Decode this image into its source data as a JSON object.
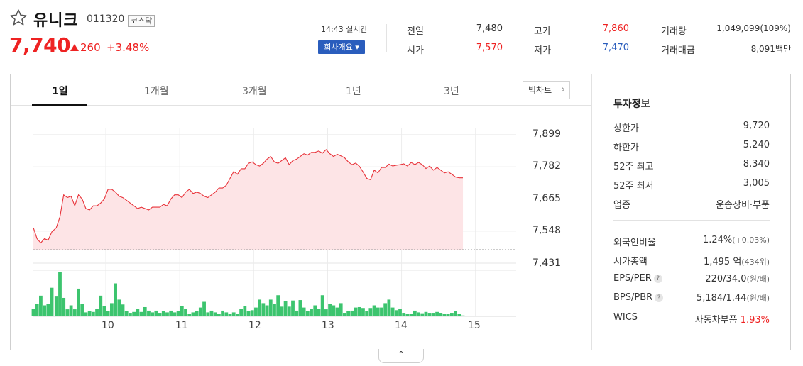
{
  "stock": {
    "name": "유니크",
    "code": "011320",
    "market": "코스닥",
    "price": "7,740",
    "change": "260",
    "rate": "+3.48%",
    "realtime": "14:43 실시간",
    "company_button": "회사개요 ▾"
  },
  "quote": {
    "prev_label": "전일",
    "prev_value": "7,480",
    "open_label": "시가",
    "open_value": "7,570",
    "high_label": "고가",
    "high_value": "7,860",
    "low_label": "저가",
    "low_value": "7,470",
    "volume_label": "거래량",
    "volume_value": "1,049,099(109%)",
    "amount_label": "거래대금",
    "amount_value": "8,091백만"
  },
  "tabs": [
    "1일",
    "1개월",
    "3개월",
    "1년",
    "3년"
  ],
  "bigchart_label": "빅차트",
  "colors": {
    "up": "#e22222",
    "down": "#2a5dbd",
    "volume": "#3cc46e",
    "line": "#e8333a",
    "fill": "#fde4e6"
  },
  "chart_data": {
    "type": "line",
    "y_ticks": [
      "7,899",
      "7,782",
      "7,665",
      "7,548",
      "7,431"
    ],
    "ylim": [
      7431,
      7899
    ],
    "x_ticks": [
      "10",
      "11",
      "12",
      "13",
      "14",
      "15"
    ],
    "xlim": [
      9.02,
      15.55
    ],
    "previous_close": 7480,
    "series": [
      {
        "x": [
          9.02,
          9.07,
          9.12,
          9.17,
          9.22,
          9.27,
          9.33,
          9.38,
          9.43,
          9.48,
          9.53,
          9.58,
          9.63,
          9.68,
          9.73,
          9.78,
          9.83,
          9.88,
          9.93,
          9.98,
          10.03,
          10.08,
          10.13,
          10.18,
          10.23,
          10.28,
          10.33,
          10.38,
          10.43,
          10.48,
          10.53,
          10.58,
          10.63,
          10.68,
          10.73,
          10.78,
          10.83,
          10.88,
          10.93,
          10.98,
          11.03,
          11.08,
          11.13,
          11.18,
          11.23,
          11.28,
          11.33,
          11.38,
          11.43,
          11.48,
          11.53,
          11.58,
          11.63,
          11.68,
          11.73,
          11.78,
          11.83,
          11.88,
          11.93,
          11.98,
          12.03,
          12.08,
          12.13,
          12.18,
          12.23,
          12.28,
          12.33,
          12.38,
          12.43,
          12.48,
          12.53,
          12.58,
          12.63,
          12.68,
          12.73,
          12.78,
          12.83,
          12.88,
          12.93,
          12.98,
          13.03,
          13.08,
          13.13,
          13.18,
          13.23,
          13.28,
          13.33,
          13.38,
          13.43,
          13.48,
          13.53,
          13.58,
          13.63,
          13.68,
          13.73,
          13.78,
          13.83,
          13.88,
          13.93,
          13.98,
          14.03,
          14.08,
          14.13,
          14.18,
          14.23,
          14.28,
          14.33,
          14.38,
          14.43,
          14.48,
          14.53,
          14.58,
          14.63,
          14.68,
          14.73,
          14.78,
          14.83
        ],
        "values": [
          7560,
          7520,
          7505,
          7520,
          7515,
          7545,
          7560,
          7600,
          7680,
          7670,
          7675,
          7640,
          7680,
          7665,
          7630,
          7625,
          7640,
          7640,
          7650,
          7665,
          7700,
          7700,
          7690,
          7675,
          7670,
          7660,
          7650,
          7640,
          7630,
          7635,
          7630,
          7625,
          7635,
          7635,
          7635,
          7645,
          7640,
          7665,
          7680,
          7680,
          7670,
          7690,
          7700,
          7685,
          7690,
          7685,
          7675,
          7670,
          7680,
          7690,
          7705,
          7705,
          7715,
          7740,
          7765,
          7755,
          7775,
          7775,
          7795,
          7800,
          7790,
          7785,
          7795,
          7810,
          7820,
          7800,
          7795,
          7805,
          7815,
          7790,
          7805,
          7810,
          7820,
          7830,
          7825,
          7835,
          7835,
          7840,
          7832,
          7845,
          7830,
          7820,
          7828,
          7822,
          7815,
          7800,
          7790,
          7796,
          7784,
          7763,
          7740,
          7735,
          7770,
          7760,
          7780,
          7780,
          7792,
          7785,
          7788,
          7790,
          7793,
          7785,
          7798,
          7790,
          7798,
          7790,
          7776,
          7785,
          7770,
          7780,
          7770,
          7760,
          7764,
          7755,
          7745,
          7742,
          7742
        ]
      }
    ],
    "volume": {
      "x": [
        9.02,
        9.07,
        9.12,
        9.17,
        9.22,
        9.27,
        9.33,
        9.38,
        9.43,
        9.48,
        9.53,
        9.58,
        9.63,
        9.68,
        9.73,
        9.78,
        9.83,
        9.88,
        9.93,
        9.98,
        10.03,
        10.08,
        10.13,
        10.18,
        10.23,
        10.28,
        10.33,
        10.38,
        10.43,
        10.48,
        10.53,
        10.58,
        10.63,
        10.68,
        10.73,
        10.78,
        10.83,
        10.88,
        10.93,
        10.98,
        11.03,
        11.08,
        11.13,
        11.18,
        11.23,
        11.28,
        11.33,
        11.38,
        11.43,
        11.48,
        11.53,
        11.58,
        11.63,
        11.68,
        11.73,
        11.78,
        11.83,
        11.88,
        11.93,
        11.98,
        12.03,
        12.08,
        12.13,
        12.18,
        12.23,
        12.28,
        12.33,
        12.38,
        12.43,
        12.48,
        12.53,
        12.58,
        12.63,
        12.68,
        12.73,
        12.78,
        12.83,
        12.88,
        12.93,
        12.98,
        13.03,
        13.08,
        13.13,
        13.18,
        13.23,
        13.28,
        13.33,
        13.38,
        13.43,
        13.48,
        13.53,
        13.58,
        13.63,
        13.68,
        13.73,
        13.78,
        13.83,
        13.88,
        13.93,
        13.98,
        14.03,
        14.08,
        14.13,
        14.18,
        14.23,
        14.28,
        14.33,
        14.38,
        14.43,
        14.48,
        14.53,
        14.58,
        14.63,
        14.68,
        14.73,
        14.78,
        14.83
      ],
      "values": [
        0.17,
        0.28,
        0.47,
        0.25,
        0.28,
        0.65,
        0.45,
        1.0,
        0.42,
        0.16,
        0.25,
        0.16,
        0.63,
        0.29,
        0.09,
        0.12,
        0.1,
        0.17,
        0.47,
        0.24,
        0.12,
        0.3,
        0.75,
        0.38,
        0.27,
        0.12,
        0.08,
        0.1,
        0.17,
        0.1,
        0.21,
        0.13,
        0.09,
        0.13,
        0.08,
        0.12,
        0.09,
        0.13,
        0.09,
        0.12,
        0.23,
        0.17,
        0.06,
        0.09,
        0.12,
        0.2,
        0.33,
        0.09,
        0.13,
        0.09,
        0.06,
        0.13,
        0.09,
        0.06,
        0.09,
        0.06,
        0.17,
        0.24,
        0.12,
        0.14,
        0.2,
        0.38,
        0.3,
        0.25,
        0.38,
        0.28,
        0.48,
        0.22,
        0.35,
        0.22,
        0.36,
        0.13,
        0.37,
        0.2,
        0.12,
        0.17,
        0.25,
        0.17,
        0.48,
        0.16,
        0.29,
        0.25,
        0.2,
        0.3,
        0.08,
        0.12,
        0.13,
        0.2,
        0.21,
        0.19,
        0.12,
        0.19,
        0.25,
        0.2,
        0.2,
        0.3,
        0.38,
        0.2,
        0.14,
        0.17,
        0.08,
        0.06,
        0.06,
        0.13,
        0.09,
        0.07,
        0.1,
        0.08,
        0.08,
        0.1,
        0.08,
        0.06,
        0.06,
        0.08,
        0.12,
        0.06,
        0.02
      ]
    },
    "grid": true
  },
  "investment": {
    "title": "투자정보",
    "upper_limit_label": "상한가",
    "upper_limit_value": "9,720",
    "lower_limit_label": "하한가",
    "lower_limit_value": "5,240",
    "high52_label": "52주 최고",
    "high52_value": "8,340",
    "low52_label": "52주 최저",
    "low52_value": "3,005",
    "industry_label": "업종",
    "industry_value": "운송장비·부품",
    "foreign_label": "외국인비율",
    "foreign_value": "1.24%",
    "foreign_sub": "(+0.03%)",
    "cap_label": "시가총액",
    "cap_value": "1,495 억",
    "cap_sub": "(434위)",
    "eps_label": "EPS/PER",
    "eps_value": "220/34.0",
    "eps_sub": "(원/배)",
    "bps_label": "BPS/PBR",
    "bps_value": "5,184/1.44",
    "bps_sub": "(원/배)",
    "wics_label": "WICS",
    "wics_value": "자동차부품",
    "wics_rate": "1.93%",
    "hint_icon": "?"
  },
  "toggle_label": "^"
}
